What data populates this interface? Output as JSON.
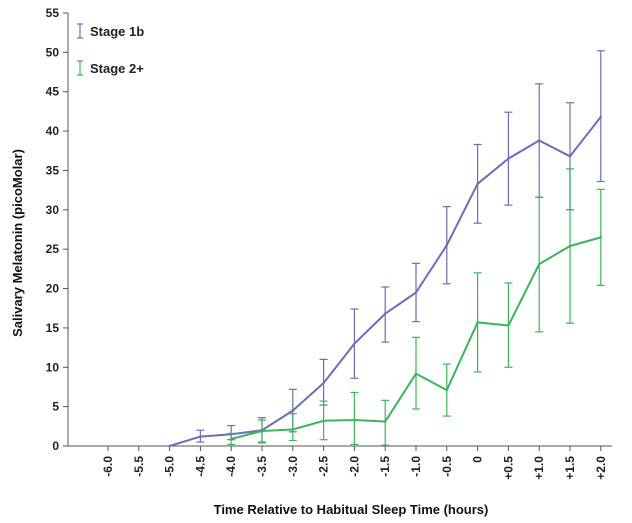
{
  "chart_data": {
    "type": "line",
    "title": "",
    "xlabel": "Time Relative to Habitual Sleep Time (hours)",
    "ylabel": "Salivary Melatonin (picoMolar)",
    "categories": [
      "-6.0",
      "-5.5",
      "-5.0",
      "-4.5",
      "-4.0",
      "-3.5",
      "-3.0",
      "-2.5",
      "-2.0",
      "-1.5",
      "-1.0",
      "-0.5",
      "0",
      "+0.5",
      "+1.0",
      "+1.5",
      "+2.0"
    ],
    "ylim": [
      0,
      55
    ],
    "yticks": [
      "0",
      "5",
      "10",
      "15",
      "20",
      "25",
      "30",
      "35",
      "40",
      "45",
      "50",
      "55"
    ],
    "grid": false,
    "legend_position": "top-left",
    "series": [
      {
        "name": "Stage 1b",
        "color": "#6b6fb3",
        "values": [
          null,
          null,
          0.0,
          1.2,
          1.5,
          2.0,
          4.5,
          8.0,
          13.0,
          16.8,
          19.5,
          25.5,
          33.3,
          36.5,
          38.8,
          36.8,
          41.8
        ],
        "err_low": [
          null,
          null,
          null,
          0.5,
          0.8,
          0.4,
          1.8,
          5.2,
          8.6,
          13.2,
          15.8,
          20.6,
          28.3,
          30.6,
          31.6,
          30.0,
          33.6
        ],
        "err_high": [
          null,
          null,
          null,
          2.0,
          2.6,
          3.6,
          7.2,
          11.0,
          17.4,
          20.2,
          23.2,
          30.4,
          38.3,
          42.4,
          46.0,
          43.6,
          50.2
        ]
      },
      {
        "name": "Stage 2+",
        "color": "#3cb55a",
        "values": [
          null,
          null,
          null,
          null,
          0.9,
          1.9,
          2.1,
          3.2,
          3.3,
          3.1,
          9.2,
          7.1,
          15.7,
          15.3,
          23.1,
          25.4,
          26.5
        ],
        "err_low": [
          null,
          null,
          null,
          null,
          0.2,
          0.5,
          0.7,
          0.8,
          0.2,
          0.1,
          4.7,
          3.8,
          9.4,
          10.0,
          14.5,
          15.6,
          20.4
        ],
        "err_high": [
          null,
          null,
          null,
          null,
          1.6,
          3.3,
          4.1,
          5.7,
          6.8,
          5.8,
          13.8,
          10.4,
          22.0,
          20.7,
          31.6,
          35.2,
          32.6
        ]
      }
    ]
  }
}
